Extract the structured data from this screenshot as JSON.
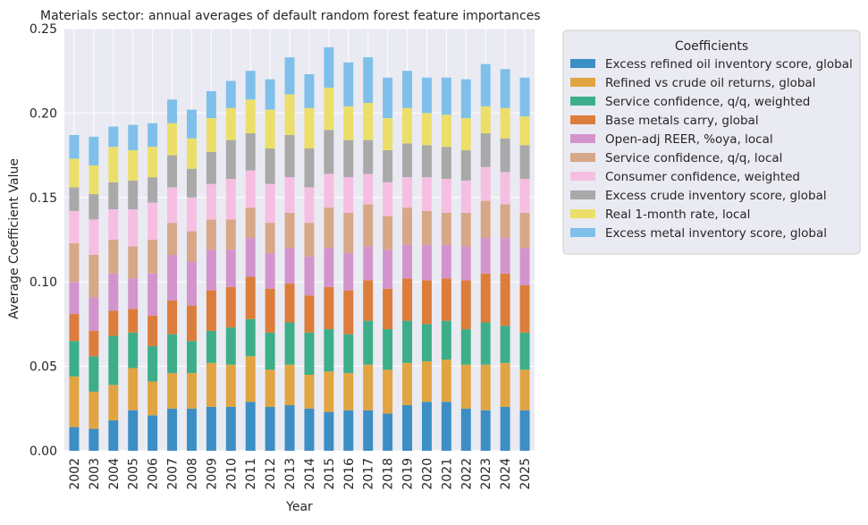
{
  "chart_data": {
    "type": "bar",
    "stacked": true,
    "title": "Materials sector: annual averages of default random forest feature importances",
    "xlabel": "Year",
    "ylabel": "Average Coefficient Value",
    "ylim": [
      0,
      0.25
    ],
    "yticks": [
      "0.00",
      "0.05",
      "0.10",
      "0.15",
      "0.20",
      "0.25"
    ],
    "grid": true,
    "legend_title": "Coefficients",
    "legend_position": "outside-right-top",
    "categories": [
      "2002",
      "2003",
      "2004",
      "2005",
      "2006",
      "2007",
      "2008",
      "2009",
      "2010",
      "2011",
      "2012",
      "2013",
      "2014",
      "2015",
      "2016",
      "2017",
      "2018",
      "2019",
      "2020",
      "2021",
      "2022",
      "2023",
      "2024",
      "2025"
    ],
    "series": [
      {
        "name": "Excess refined oil inventory score, global",
        "color": "#3b8fc4",
        "values": [
          0.014,
          0.013,
          0.018,
          0.024,
          0.021,
          0.025,
          0.025,
          0.026,
          0.026,
          0.029,
          0.026,
          0.027,
          0.025,
          0.023,
          0.024,
          0.024,
          0.022,
          0.027,
          0.029,
          0.029,
          0.025,
          0.024,
          0.026,
          0.024
        ]
      },
      {
        "name": "Refined vs crude oil returns, global",
        "color": "#e1a442",
        "values": [
          0.03,
          0.022,
          0.021,
          0.025,
          0.02,
          0.021,
          0.021,
          0.026,
          0.025,
          0.027,
          0.022,
          0.024,
          0.02,
          0.024,
          0.022,
          0.027,
          0.026,
          0.025,
          0.024,
          0.025,
          0.026,
          0.027,
          0.026,
          0.024
        ]
      },
      {
        "name": "Service confidence, q/q, weighted",
        "color": "#3dae89",
        "values": [
          0.021,
          0.021,
          0.029,
          0.021,
          0.021,
          0.023,
          0.019,
          0.019,
          0.022,
          0.022,
          0.022,
          0.025,
          0.025,
          0.025,
          0.023,
          0.026,
          0.024,
          0.025,
          0.022,
          0.023,
          0.021,
          0.025,
          0.022,
          0.022
        ]
      },
      {
        "name": "Base metals carry, global",
        "color": "#dc7d3c",
        "values": [
          0.016,
          0.015,
          0.015,
          0.014,
          0.018,
          0.02,
          0.021,
          0.024,
          0.024,
          0.025,
          0.026,
          0.023,
          0.022,
          0.025,
          0.026,
          0.024,
          0.024,
          0.025,
          0.026,
          0.025,
          0.029,
          0.029,
          0.031,
          0.028
        ]
      },
      {
        "name": "Open-adj REER, %oya, local",
        "color": "#d394cc",
        "values": [
          0.019,
          0.02,
          0.022,
          0.018,
          0.025,
          0.027,
          0.026,
          0.024,
          0.022,
          0.023,
          0.021,
          0.021,
          0.023,
          0.023,
          0.022,
          0.02,
          0.023,
          0.02,
          0.021,
          0.02,
          0.02,
          0.021,
          0.021,
          0.022
        ]
      },
      {
        "name": "Service confidence, q/q, local",
        "color": "#d6a888",
        "values": [
          0.023,
          0.025,
          0.02,
          0.019,
          0.02,
          0.019,
          0.018,
          0.018,
          0.018,
          0.018,
          0.018,
          0.021,
          0.02,
          0.024,
          0.024,
          0.025,
          0.02,
          0.022,
          0.02,
          0.019,
          0.02,
          0.022,
          0.02,
          0.021
        ]
      },
      {
        "name": "Consumer confidence, weighted",
        "color": "#f6bfe2",
        "values": [
          0.019,
          0.021,
          0.018,
          0.022,
          0.022,
          0.021,
          0.02,
          0.021,
          0.024,
          0.022,
          0.023,
          0.021,
          0.021,
          0.02,
          0.021,
          0.018,
          0.02,
          0.018,
          0.02,
          0.02,
          0.019,
          0.02,
          0.019,
          0.02
        ]
      },
      {
        "name": "Excess crude inventory score, global",
        "color": "#a9a9a9",
        "values": [
          0.014,
          0.015,
          0.016,
          0.017,
          0.015,
          0.019,
          0.017,
          0.019,
          0.023,
          0.022,
          0.021,
          0.025,
          0.023,
          0.026,
          0.022,
          0.02,
          0.019,
          0.02,
          0.019,
          0.019,
          0.018,
          0.02,
          0.02,
          0.02
        ]
      },
      {
        "name": "Real 1-month rate, local",
        "color": "#ebdf6a",
        "values": [
          0.017,
          0.017,
          0.021,
          0.018,
          0.018,
          0.019,
          0.018,
          0.02,
          0.019,
          0.02,
          0.023,
          0.024,
          0.024,
          0.025,
          0.02,
          0.022,
          0.019,
          0.021,
          0.019,
          0.019,
          0.019,
          0.016,
          0.018,
          0.017
        ]
      },
      {
        "name": "Excess metal inventory score, global",
        "color": "#7fc0ea",
        "values": [
          0.014,
          0.017,
          0.012,
          0.015,
          0.014,
          0.014,
          0.017,
          0.016,
          0.016,
          0.017,
          0.018,
          0.022,
          0.02,
          0.024,
          0.026,
          0.027,
          0.024,
          0.022,
          0.021,
          0.022,
          0.023,
          0.025,
          0.023,
          0.023
        ]
      }
    ]
  },
  "colors": {
    "plot_background": "#eaeaf2",
    "grid": "#ffffff"
  }
}
